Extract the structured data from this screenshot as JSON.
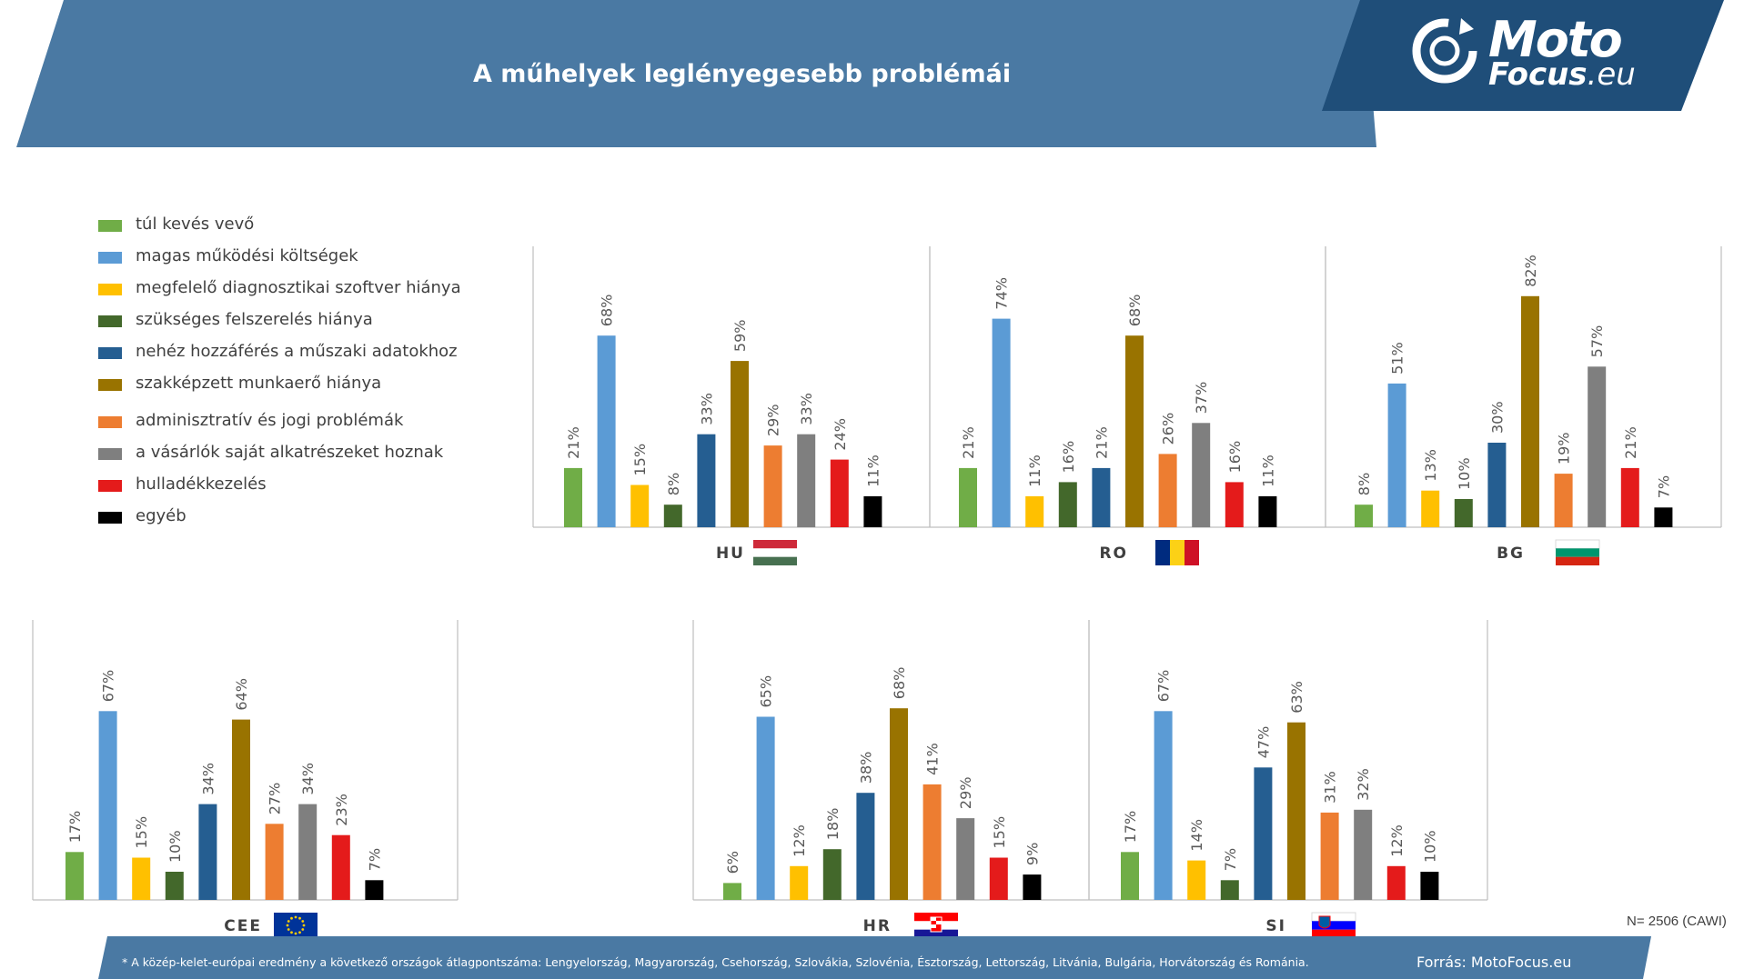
{
  "header": {
    "title": "A műhelyek leglényegesebb problémái"
  },
  "logo": {
    "word1": "Moto",
    "word2": "Focus",
    "word2_suffix": ".eu"
  },
  "colors": {
    "header_bg": "#4a79a3",
    "logo_bg": "#1f4e79",
    "axis": "#bfbfbf"
  },
  "legend": [
    {
      "label": "túl kevés vevő",
      "color": "#70ad47"
    },
    {
      "label": "magas működési költségek",
      "color": "#5b9bd5"
    },
    {
      "label": "megfelelő diagnosztikai szoftver hiánya",
      "color": "#ffc000"
    },
    {
      "label": "szükséges felszerelés hiánya",
      "color": "#43682b"
    },
    {
      "label": "nehéz hozzáférés a műszaki adatokhoz",
      "color": "#255e91"
    },
    {
      "label": "szakképzett munkaerő hiánya",
      "color": "#997300"
    },
    {
      "label": "adminisztratív és jogi problémák",
      "color": "#ed7d31"
    },
    {
      "label": "a vásárlók  saját alkatrészeket hoznak",
      "color": "#7f7f7f"
    },
    {
      "label": "hulladékkezelés",
      "color": "#e41b1b"
    },
    {
      "label": "egyéb",
      "color": "#000000"
    }
  ],
  "chart_data": [
    {
      "type": "bar",
      "country": "HU",
      "flag": "hungary",
      "unit": "%",
      "values": [
        21,
        68,
        15,
        8,
        33,
        59,
        29,
        33,
        24,
        11
      ]
    },
    {
      "type": "bar",
      "country": "RO",
      "flag": "romania",
      "unit": "%",
      "values": [
        21,
        74,
        11,
        16,
        21,
        68,
        26,
        37,
        16,
        11
      ]
    },
    {
      "type": "bar",
      "country": "BG",
      "flag": "bulgaria",
      "unit": "%",
      "values": [
        8,
        51,
        13,
        10,
        30,
        82,
        19,
        57,
        21,
        7
      ]
    },
    {
      "type": "bar",
      "country": "CEE",
      "flag": "eu",
      "unit": "%",
      "values": [
        17,
        67,
        15,
        10,
        34,
        64,
        27,
        34,
        23,
        7
      ]
    },
    {
      "type": "bar",
      "country": "HR",
      "flag": "croatia",
      "unit": "%",
      "values": [
        6,
        65,
        12,
        18,
        38,
        68,
        41,
        29,
        15,
        9
      ]
    },
    {
      "type": "bar",
      "country": "SI",
      "flag": "slovenia",
      "unit": "%",
      "values": [
        17,
        67,
        14,
        7,
        47,
        63,
        31,
        32,
        12,
        10
      ]
    }
  ],
  "sample_note": "N= 2506 (CAWI)",
  "footer": {
    "note": "* A közép-kelet-európai eredmény a következő országok átlagpontszáma: Lengyelország, Magyarország, Csehország, Szlovákia, Szlovénia, Észtország, Lettország, Litvánia, Bulgária, Horvátország és Románia.",
    "source": "Forrás: MotoFocus.eu"
  }
}
